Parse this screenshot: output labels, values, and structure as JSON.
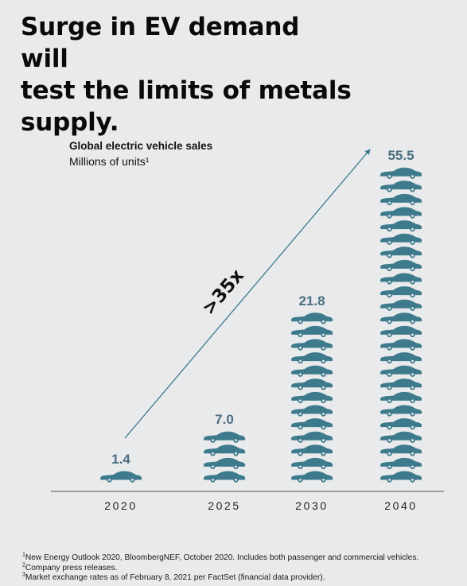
{
  "headline": {
    "lines": [
      "Surge in EV demand will",
      "test the limits of metals",
      "supply."
    ]
  },
  "chart_data": {
    "type": "bar",
    "title": "Global electric vehicle sales",
    "subtitle": "Millions of units¹",
    "categories": [
      "2020",
      "2025",
      "2030",
      "2040"
    ],
    "values": [
      1.4,
      7.0,
      21.8,
      55.5
    ],
    "value_labels": [
      "1.4",
      "7.0",
      "21.8",
      "55.5"
    ],
    "icons_per_column": [
      1,
      4,
      13,
      24
    ],
    "icon_name": "car-icon",
    "ylim": [
      0,
      55.5
    ],
    "grid": false,
    "annotation": {
      "text": ">35x",
      "from_category": "2020",
      "to_category": "2040"
    },
    "colors": {
      "bar_icon": "#3d7a8c",
      "value_label": "#4a6e80",
      "arrow": "#3d7a8c",
      "axis": "#555555",
      "tick_label": "#222222"
    }
  },
  "footnotes": [
    {
      "mark": "1",
      "text": "New Energy Outlook 2020, BloombergNEF, October 2020. Includes both passenger and commercial vehicles."
    },
    {
      "mark": "2",
      "text": "Company press releases."
    },
    {
      "mark": "3",
      "text": "Market exchange rates as of February 8, 2021 per FactSet (financial data provider)."
    }
  ]
}
